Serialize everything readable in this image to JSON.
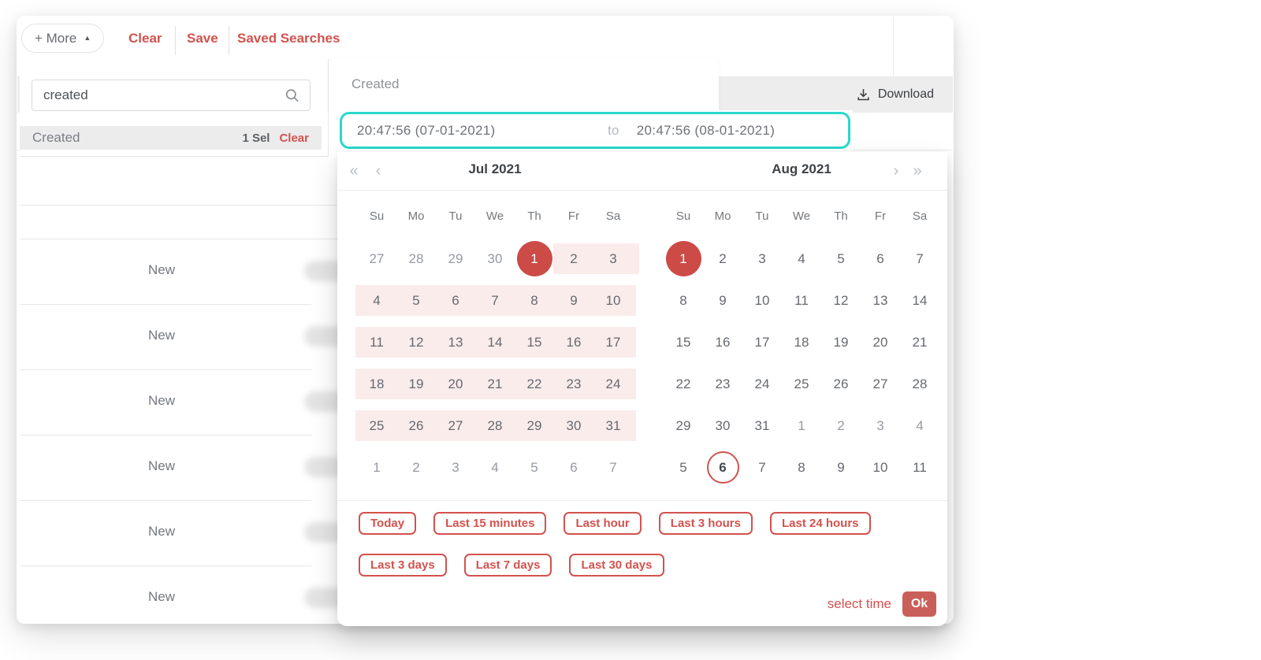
{
  "toolbar": {
    "more": "+ More",
    "clear": "Clear",
    "save": "Save",
    "saved": "Saved Searches"
  },
  "search_panel": {
    "query": "created",
    "item_label": "Created",
    "item_count": "1 Sel",
    "item_clear": "Clear"
  },
  "table": {
    "download": "Download",
    "rows": [
      "New",
      "New",
      "New",
      "New",
      "New",
      "New"
    ]
  },
  "created_panel": {
    "title": "Created"
  },
  "range_input": {
    "start": "20:47:56 (07-01-2021)",
    "to": "to",
    "end": "20:47:56 (08-01-2021)"
  },
  "calendar": {
    "prev_year": "«",
    "prev_month": "‹",
    "next_month": "›",
    "next_year": "»",
    "dow": [
      "Su",
      "Mo",
      "Tu",
      "We",
      "Th",
      "Fr",
      "Sa"
    ],
    "months": [
      {
        "title": "Jul 2021",
        "weeks": [
          {
            "hl": "tail",
            "cells": [
              {
                "d": 27,
                "m": 1
              },
              {
                "d": 28,
                "m": 1
              },
              {
                "d": 29,
                "m": 1
              },
              {
                "d": 30,
                "m": 1
              },
              {
                "d": 1,
                "sel": 1
              },
              {
                "d": 2
              },
              {
                "d": 3
              }
            ]
          },
          {
            "hl": "full",
            "cells": [
              {
                "d": 4
              },
              {
                "d": 5
              },
              {
                "d": 6
              },
              {
                "d": 7
              },
              {
                "d": 8
              },
              {
                "d": 9
              },
              {
                "d": 10
              }
            ]
          },
          {
            "hl": "full",
            "cells": [
              {
                "d": 11
              },
              {
                "d": 12
              },
              {
                "d": 13
              },
              {
                "d": 14
              },
              {
                "d": 15
              },
              {
                "d": 16
              },
              {
                "d": 17
              }
            ]
          },
          {
            "hl": "full",
            "cells": [
              {
                "d": 18
              },
              {
                "d": 19
              },
              {
                "d": 20
              },
              {
                "d": 21
              },
              {
                "d": 22
              },
              {
                "d": 23
              },
              {
                "d": 24
              }
            ]
          },
          {
            "hl": "full",
            "cells": [
              {
                "d": 25
              },
              {
                "d": 26
              },
              {
                "d": 27
              },
              {
                "d": 28
              },
              {
                "d": 29
              },
              {
                "d": 30
              },
              {
                "d": 31
              }
            ]
          },
          {
            "hl": "none",
            "cells": [
              {
                "d": 1,
                "m": 1
              },
              {
                "d": 2,
                "m": 1
              },
              {
                "d": 3,
                "m": 1
              },
              {
                "d": 4,
                "m": 1
              },
              {
                "d": 5,
                "m": 1
              },
              {
                "d": 6,
                "m": 1
              },
              {
                "d": 7,
                "m": 1
              }
            ]
          }
        ]
      },
      {
        "title": "Aug 2021",
        "weeks": [
          {
            "hl": "none",
            "cells": [
              {
                "d": 1,
                "sel": 1
              },
              {
                "d": 2
              },
              {
                "d": 3
              },
              {
                "d": 4
              },
              {
                "d": 5
              },
              {
                "d": 6
              },
              {
                "d": 7
              }
            ]
          },
          {
            "hl": "none",
            "cells": [
              {
                "d": 8
              },
              {
                "d": 9
              },
              {
                "d": 10
              },
              {
                "d": 11
              },
              {
                "d": 12
              },
              {
                "d": 13
              },
              {
                "d": 14
              }
            ]
          },
          {
            "hl": "none",
            "cells": [
              {
                "d": 15
              },
              {
                "d": 16
              },
              {
                "d": 17
              },
              {
                "d": 18
              },
              {
                "d": 19
              },
              {
                "d": 20
              },
              {
                "d": 21
              }
            ]
          },
          {
            "hl": "none",
            "cells": [
              {
                "d": 22
              },
              {
                "d": 23
              },
              {
                "d": 24
              },
              {
                "d": 25
              },
              {
                "d": 26
              },
              {
                "d": 27
              },
              {
                "d": 28
              }
            ]
          },
          {
            "hl": "none",
            "cells": [
              {
                "d": 29
              },
              {
                "d": 30
              },
              {
                "d": 31
              },
              {
                "d": 1,
                "m": 1
              },
              {
                "d": 2,
                "m": 1
              },
              {
                "d": 3,
                "m": 1
              },
              {
                "d": 4,
                "m": 1
              }
            ]
          },
          {
            "hl": "none",
            "cells": [
              {
                "d": 5
              },
              {
                "d": 6,
                "today": 1
              },
              {
                "d": 7
              },
              {
                "d": 8
              },
              {
                "d": 9
              },
              {
                "d": 10
              },
              {
                "d": 11
              }
            ]
          }
        ]
      }
    ]
  },
  "quick_ranges": {
    "row1": [
      "Today",
      "Last 15 minutes",
      "Last hour",
      "Last 3 hours",
      "Last 24 hours"
    ],
    "row2": [
      "Last 3 days",
      "Last 7 days",
      "Last 30 days"
    ]
  },
  "footer": {
    "select_time": "select time",
    "ok": "Ok"
  },
  "colors": {
    "red": "#d2524e",
    "redfill": "#cc4b47",
    "okbg": "#c95f5a",
    "pink": "#faeceb",
    "teal": "#29d8cb",
    "barbg": "#ededed",
    "rowbg": "#ececec"
  }
}
